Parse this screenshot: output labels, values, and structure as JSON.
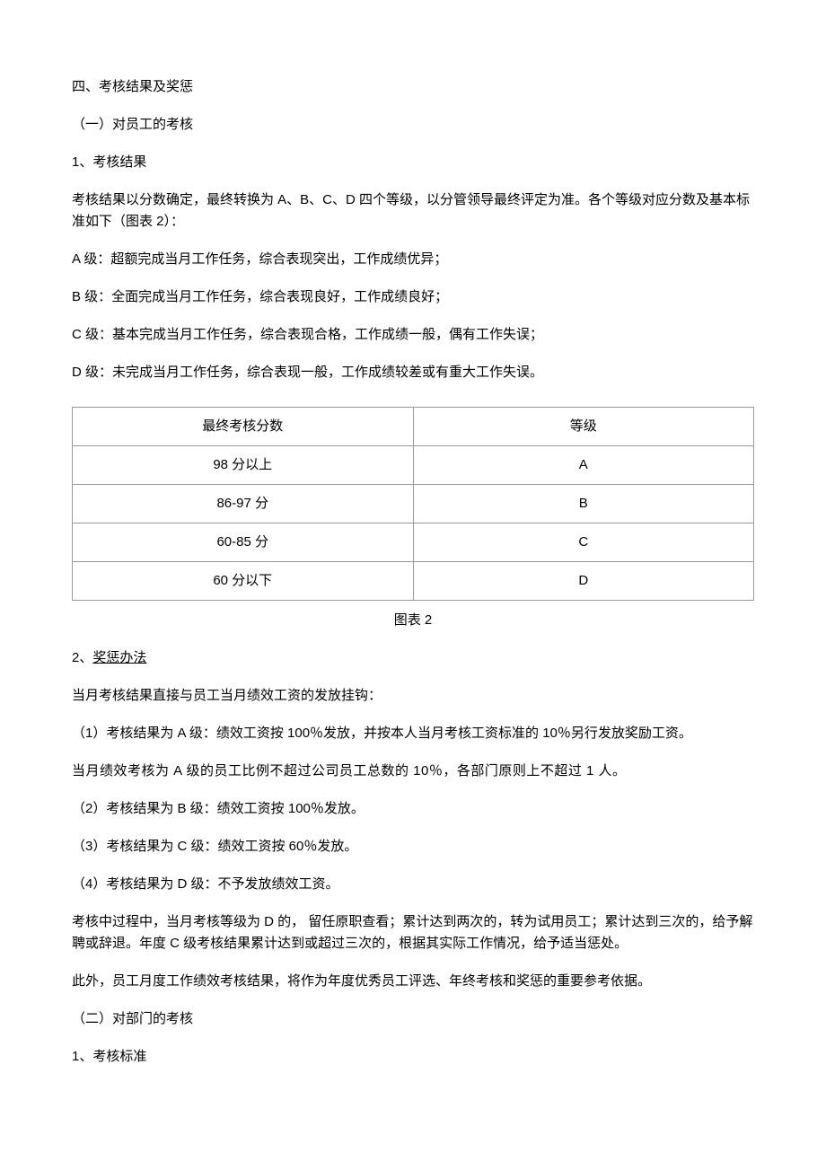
{
  "section": {
    "heading": "四、考核结果及奖惩",
    "sub1": {
      "heading": "（一）对员工的考核",
      "item1": {
        "heading": "1、考核结果",
        "intro": "考核结果以分数确定，最终转换为 A、B、C、D 四个等级，以分管领导最终评定为准。各个等级对应分数及基本标准如下（图表 2）：",
        "levelA": "A 级：超额完成当月工作任务，综合表现突出，工作成绩优异；",
        "levelB": "B 级：全面完成当月工作任务，综合表现良好，工作成绩良好；",
        "levelC": "C 级：基本完成当月工作任务，综合表现合格，工作成绩一般，偶有工作失误；",
        "levelD": "D 级：未完成当月工作任务，综合表现一般，工作成绩较差或有重大工作失误。",
        "table": {
          "header": {
            "score": "最终考核分数",
            "grade": "等级"
          },
          "rows": [
            {
              "score": "98 分以上",
              "grade": "A"
            },
            {
              "score": "86-97 分",
              "grade": "B"
            },
            {
              "score": "60-85 分",
              "grade": "C"
            },
            {
              "score": "60 分以下",
              "grade": "D"
            }
          ],
          "caption": "图表 2"
        }
      },
      "item2": {
        "heading_prefix": "2、",
        "heading_underline": "奖惩办法",
        "p1": "当月考核结果直接与员工当月绩效工资的发放挂钩：",
        "p2": "（1）考核结果为 A 级：绩效工资按 100％发放，并按本人当月考核工资标准的 10％另行发放奖励工资。",
        "p3": "当月绩效考核为  A 级的员工比例不超过公司员工总数的   10％，各部门原则上不超过   1 人。",
        "p4": "（2）考核结果为  B 级：绩效工资按   100％发放。",
        "p5": "（3）考核结果为  C 级：绩效工资按   60％发放。",
        "p6": "（4）考核结果为  D 级：不予发放绩效工资。",
        "p7": "考核中过程中，当月考核等级为 D 的， 留任原职查看；累计达到两次的，转为试用员工；累计达到三次的，给予解聘或辞退。年度 C 级考核结果累计达到或超过三次的，根据其实际工作情况，给予适当惩处。",
        "p8": "此外，员工月度工作绩效考核结果，将作为年度优秀员工评选、年终考核和奖惩的重要参考依据。"
      }
    },
    "sub2": {
      "heading": "（二）对部门的考核",
      "item1": {
        "heading": "1、考核标准"
      }
    }
  }
}
